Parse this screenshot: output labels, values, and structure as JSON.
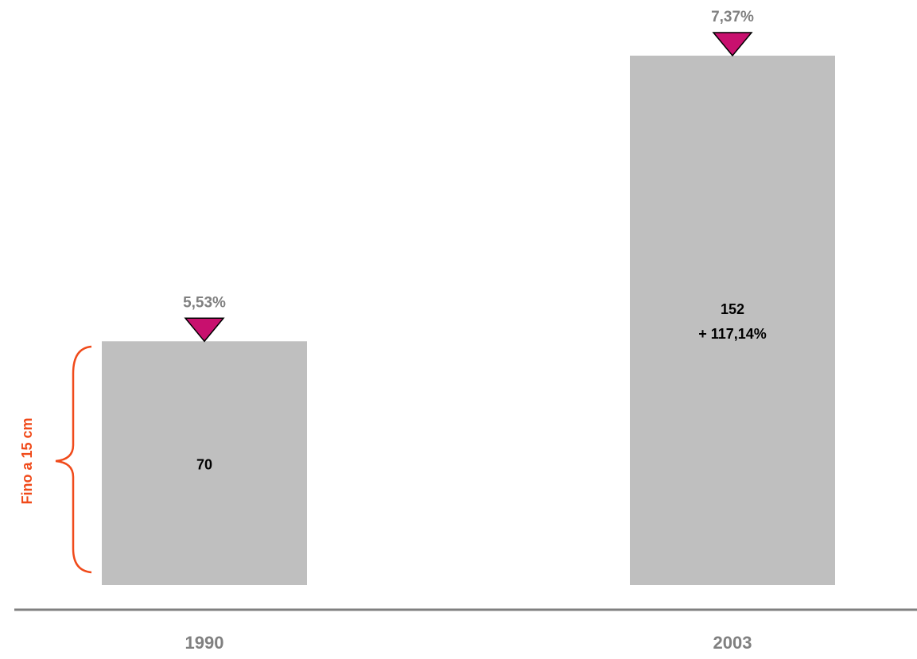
{
  "chart_data": {
    "type": "bar",
    "categories": [
      "1990",
      "2003"
    ],
    "values": [
      70,
      152
    ],
    "color": "#bfbfbf",
    "markers": [
      {
        "value": 5.53,
        "label": "5,53%"
      },
      {
        "value": 7.37,
        "label": "7,37%"
      }
    ],
    "marker_color": "#c8106e",
    "growth_label": "+ 117,14%",
    "bracket_label": "Fino a 15 cm",
    "bracket_color": "#f04a1a"
  }
}
